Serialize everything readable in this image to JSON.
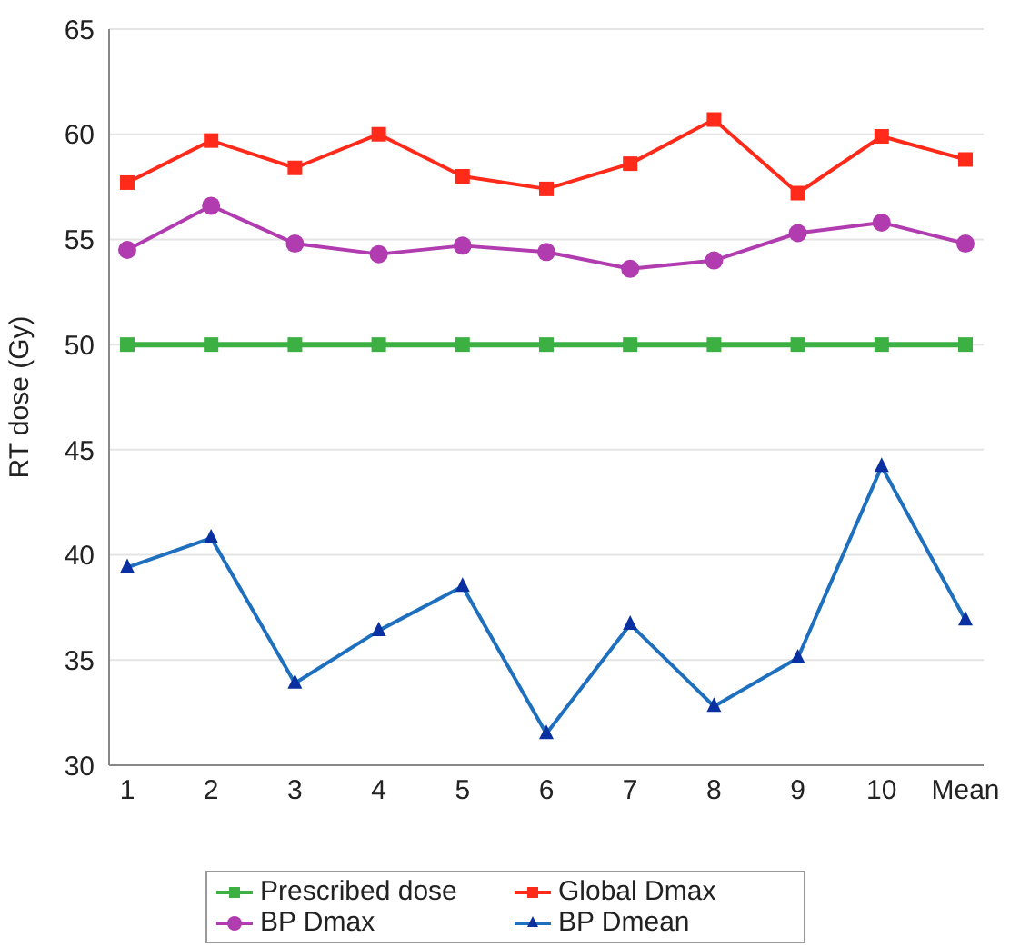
{
  "chart_data": {
    "type": "line",
    "ylabel": "RT dose (Gy)",
    "categories": [
      "1",
      "2",
      "3",
      "4",
      "5",
      "6",
      "7",
      "8",
      "9",
      "10",
      "Mean"
    ],
    "series": [
      {
        "name": "Prescribed dose",
        "color": "#3cb043",
        "marker": "square",
        "values": [
          50,
          50,
          50,
          50,
          50,
          50,
          50,
          50,
          50,
          50,
          50
        ]
      },
      {
        "name": "Global Dmax",
        "color": "#ff2a1a",
        "marker": "square",
        "values": [
          57.7,
          59.7,
          58.4,
          60.0,
          58.0,
          57.4,
          58.6,
          60.7,
          57.2,
          59.9,
          58.8
        ]
      },
      {
        "name": "BP Dmax",
        "color": "#b03cb0",
        "marker": "circle",
        "values": [
          54.5,
          56.6,
          54.8,
          54.3,
          54.7,
          54.4,
          53.6,
          54.0,
          55.3,
          55.8,
          54.8
        ]
      },
      {
        "name": "BP Dmean",
        "color": "#1f6fbf",
        "marker": "triangle",
        "values": [
          39.4,
          40.8,
          33.9,
          36.4,
          38.5,
          31.5,
          36.7,
          32.8,
          35.1,
          44.2,
          36.9
        ]
      }
    ],
    "ylim": [
      30,
      65
    ],
    "yticks": [
      30,
      35,
      40,
      45,
      50,
      55,
      60,
      65
    ],
    "grid": "y",
    "legend": "bottom"
  }
}
